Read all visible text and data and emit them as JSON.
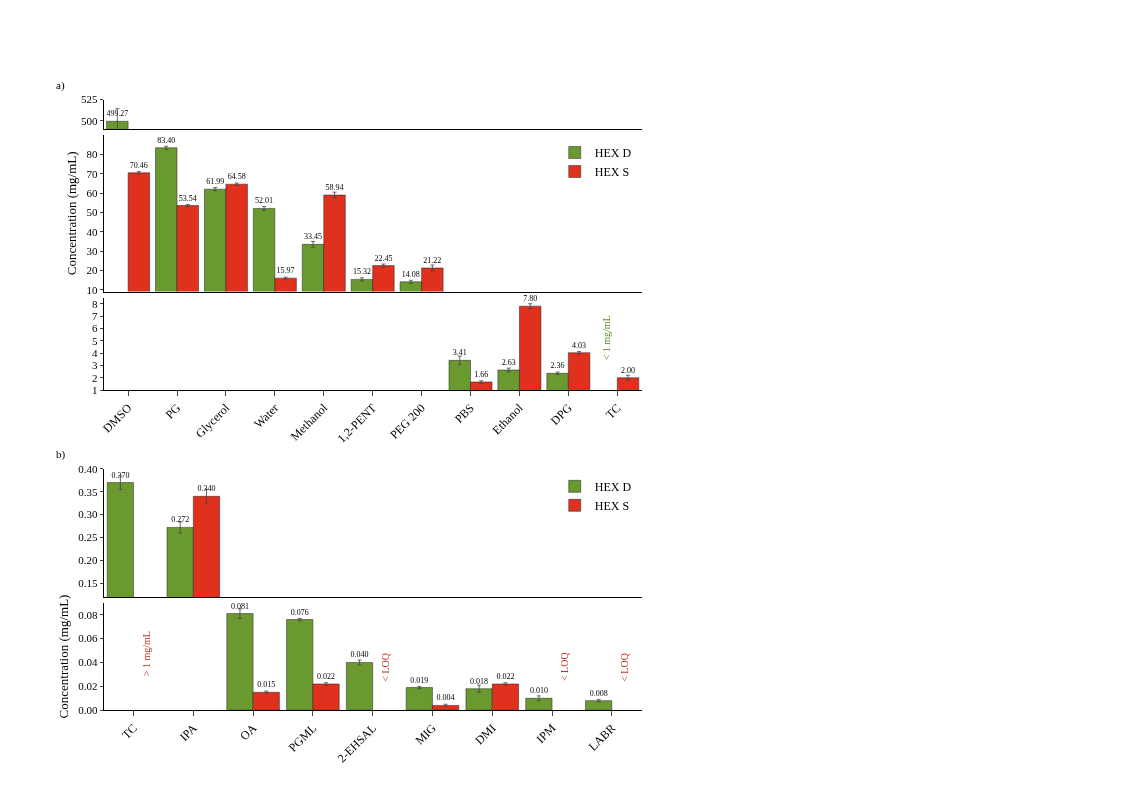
{
  "chart_data": [
    {
      "type": "bar",
      "title": "a)",
      "categories": [
        null,
        null,
        null,
        null,
        null,
        null,
        null,
        null,
        null,
        null,
        null
      ],
      "ylim": [
        490,
        525
      ],
      "yticks": [
        500,
        525
      ],
      "tick_labels": "y",
      "series": [
        {
          "color": "#6a9a2f",
          "values": [
            499.27,
            null,
            null,
            null,
            null,
            null,
            null,
            null,
            null,
            null,
            null
          ],
          "errors": [
            15,
            null,
            null,
            null,
            null,
            null,
            null,
            null,
            null,
            null,
            null
          ],
          "value_labels": [
            "499.27",
            null,
            null,
            null,
            null,
            null,
            null,
            null,
            null,
            null,
            null
          ]
        },
        {
          "color": "#e0301e",
          "values": [
            null,
            null,
            null,
            null,
            null,
            null,
            null,
            null,
            null,
            null,
            null
          ],
          "errors": [
            null,
            null,
            null,
            null,
            null,
            null,
            null,
            null,
            null,
            null,
            null
          ],
          "value_labels": [
            null,
            null,
            null,
            null,
            null,
            null,
            null,
            null,
            null,
            null,
            null
          ]
        }
      ]
    },
    {
      "type": "bar",
      "categories": [
        null,
        null,
        null,
        null,
        null,
        null,
        null,
        null,
        null,
        null,
        null
      ],
      "ylim": [
        9,
        90
      ],
      "yticks": [
        10,
        20,
        30,
        40,
        50,
        60,
        70,
        80
      ],
      "tick_labels": "y",
      "ylabel": "Concentration (mg/mL)",
      "legend": "top right",
      "series": [
        {
          "name": "HEX D",
          "color": "#6a9a2f",
          "values": [
            null,
            83.4,
            61.99,
            52.01,
            33.45,
            15.32,
            14.08,
            null,
            null,
            null,
            null
          ],
          "errors": [
            null,
            0.8,
            0.8,
            1,
            1.5,
            0.8,
            0.8,
            null,
            null,
            null,
            null
          ],
          "value_labels": [
            null,
            "83.40",
            "61.99",
            "52.01",
            "33.45",
            "15.32",
            "14.08",
            null,
            null,
            null,
            null
          ]
        },
        {
          "name": "HEX S",
          "color": "#e0301e",
          "values": [
            70.46,
            53.54,
            64.58,
            15.97,
            58.94,
            22.45,
            21.22,
            null,
            null,
            null,
            null
          ],
          "errors": [
            0.6,
            0.5,
            0.6,
            0.5,
            1.5,
            0.8,
            1.5,
            null,
            null,
            null,
            null
          ],
          "value_labels": [
            "70.46",
            "53.54",
            "64.58",
            "15.97",
            "58.94",
            "22.45",
            "21.22",
            null,
            null,
            null,
            null
          ]
        }
      ]
    },
    {
      "type": "bar",
      "categories": [
        "DMSO",
        "PG",
        "Glycerol",
        "Water",
        "Methanol",
        "1,2-PENT",
        "PEG 200",
        "PBS",
        "Ethanol",
        "DPG",
        "TC"
      ],
      "ylim": [
        1,
        8.5
      ],
      "yticks": [
        1,
        2,
        3,
        4,
        5,
        6,
        7,
        8
      ],
      "annotations": [
        "< 1 mg/mL"
      ],
      "series": [
        {
          "color": "#6a9a2f",
          "values": [
            null,
            null,
            null,
            null,
            null,
            null,
            null,
            3.41,
            2.63,
            2.36,
            null
          ],
          "errors": [
            null,
            null,
            null,
            null,
            null,
            null,
            null,
            0.35,
            0.15,
            0.1,
            null
          ],
          "value_labels": [
            null,
            null,
            null,
            null,
            null,
            null,
            null,
            "3.41",
            "2.63",
            "2.36",
            null
          ]
        },
        {
          "color": "#e0301e",
          "values": [
            null,
            null,
            null,
            null,
            null,
            null,
            null,
            1.66,
            7.8,
            4.03,
            2.0
          ],
          "errors": [
            null,
            null,
            null,
            null,
            null,
            null,
            null,
            0.1,
            0.2,
            0.1,
            0.2
          ],
          "value_labels": [
            null,
            null,
            null,
            null,
            null,
            null,
            null,
            "1.66",
            "7.80",
            "4.03",
            "2.00"
          ]
        }
      ]
    },
    {
      "type": "bar",
      "title": "b)",
      "categories": [
        null,
        null,
        null,
        null,
        null,
        null,
        null,
        null,
        null
      ],
      "ylim": [
        0.12,
        0.4
      ],
      "yticks": [
        {
          "value": 0.15,
          "label": "0.15"
        },
        {
          "value": 0.2,
          "label": "0.20"
        },
        {
          "value": 0.25,
          "label": "0.25"
        },
        {
          "value": 0.3,
          "label": "0.30"
        },
        {
          "value": 0.35,
          "label": "0.35"
        },
        {
          "value": 0.4,
          "label": "0.40"
        }
      ],
      "tick_labels": "y",
      "legend": "top right",
      "series": [
        {
          "name": "HEX D",
          "color": "#6a9a2f",
          "values": [
            0.37,
            0.272,
            null,
            null,
            null,
            null,
            null,
            null,
            null
          ],
          "errors": [
            0.015,
            0.012,
            null,
            null,
            null,
            null,
            null,
            null,
            null
          ],
          "value_labels": [
            "0.370",
            "0.272",
            null,
            null,
            null,
            null,
            null,
            null,
            null
          ]
        },
        {
          "name": "HEX S",
          "color": "#e0301e",
          "values": [
            null,
            0.34,
            null,
            null,
            null,
            null,
            null,
            null,
            null
          ],
          "errors": [
            null,
            0.015,
            null,
            null,
            null,
            null,
            null,
            null,
            null
          ],
          "value_labels": [
            null,
            "0.340",
            null,
            null,
            null,
            null,
            null,
            null,
            null
          ]
        }
      ]
    },
    {
      "type": "bar",
      "categories": [
        "TC",
        "IPA",
        "OA",
        "PGML",
        "2-EHSAL",
        "MIG",
        "DMI",
        "IPM",
        "LABR"
      ],
      "ylim": [
        0,
        0.09
      ],
      "yticks": [
        {
          "value": 0,
          "label": "0.00"
        },
        {
          "value": 0.02,
          "label": "0.02"
        },
        {
          "value": 0.04,
          "label": "0.04"
        },
        {
          "value": 0.06,
          "label": "0.06"
        },
        {
          "value": 0.08,
          "label": "0.08"
        }
      ],
      "ylabel": "Concentration (mg/mL)",
      "annotations": [
        "> 1 mg/mL",
        "< LOQ",
        "< LOQ",
        "< LOQ"
      ],
      "series": [
        {
          "color": "#6a9a2f",
          "values": [
            null,
            null,
            0.081,
            0.076,
            0.04,
            0.019,
            0.018,
            0.01,
            0.008
          ],
          "errors": [
            null,
            null,
            0.004,
            0.001,
            0.002,
            0.001,
            0.003,
            0.002,
            0.001
          ],
          "value_labels": [
            null,
            null,
            "0.081",
            "0.076",
            "0.040",
            "0.019",
            "0.018",
            "0.010",
            "0.008"
          ]
        },
        {
          "color": "#e0301e",
          "values": [
            null,
            null,
            0.015,
            0.022,
            null,
            0.004,
            0.022,
            null,
            null
          ],
          "errors": [
            null,
            null,
            0.001,
            0.001,
            null,
            0.001,
            0.001,
            null,
            null
          ],
          "value_labels": [
            null,
            null,
            "0.015",
            "0.022",
            null,
            "0.004",
            "0.022",
            null,
            null
          ]
        }
      ]
    }
  ]
}
